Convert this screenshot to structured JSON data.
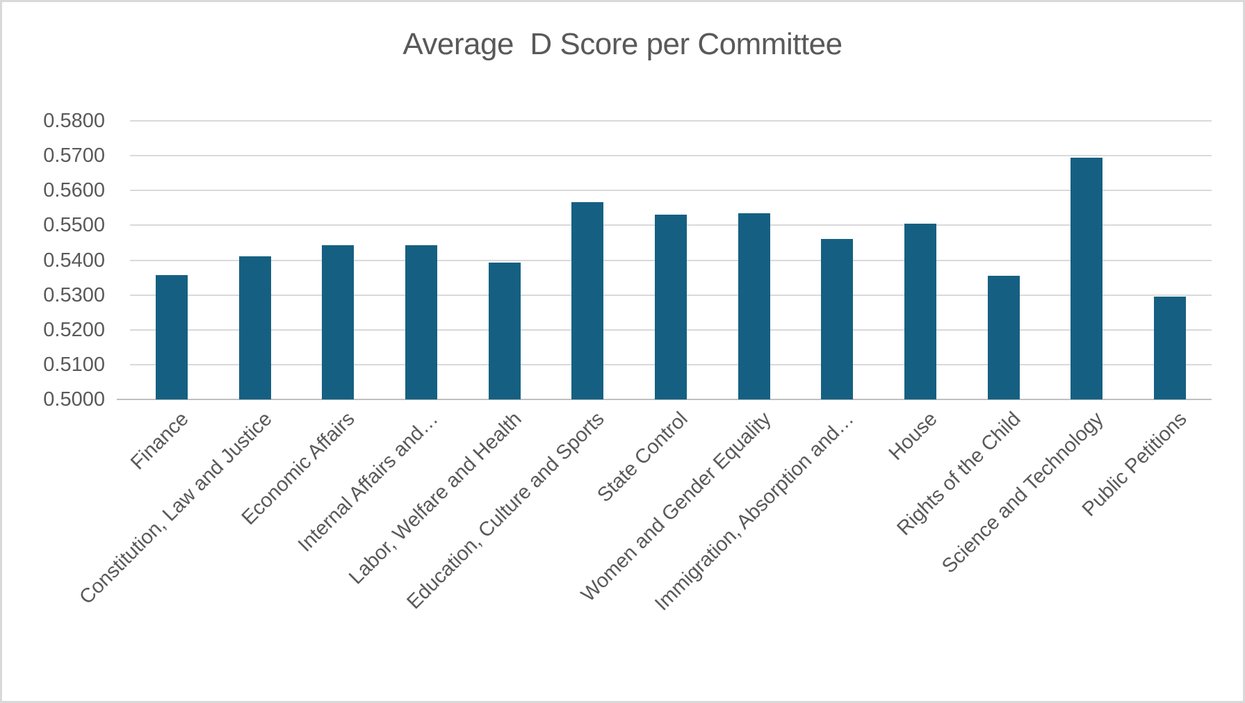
{
  "chart_data": {
    "type": "bar",
    "title": "Average  D Score per Committee",
    "categories": [
      "Finance",
      "Constitution, Law and Justice",
      "Economic Affairs",
      "Internal Affairs and…",
      "Labor, Welfare and Health",
      "Education, Culture and Sports",
      "State Control",
      "Women and Gender Equality",
      "Immigration, Absorption and…",
      "House",
      "Rights of the Child",
      "Science and Technology",
      "Public Petitions"
    ],
    "values": [
      0.5358,
      0.5411,
      0.5442,
      0.5442,
      0.5394,
      0.5566,
      0.553,
      0.5535,
      0.546,
      0.5505,
      0.5356,
      0.5694,
      0.5296
    ],
    "xlabel": "",
    "ylabel": "",
    "ylim": [
      0.5,
      0.58
    ],
    "ytick_step": 0.01,
    "ytick_labels": [
      "0.5000",
      "0.5100",
      "0.5200",
      "0.5300",
      "0.5400",
      "0.5500",
      "0.5600",
      "0.5700",
      "0.5800"
    ],
    "grid": true,
    "legend_position": "none",
    "colors": {
      "bar": "#156082",
      "gridline": "#d9d9d9",
      "axis_line": "#bfbfbf",
      "text": "#595959",
      "frame_border": "#d9d9d9",
      "background": "#ffffff"
    }
  }
}
